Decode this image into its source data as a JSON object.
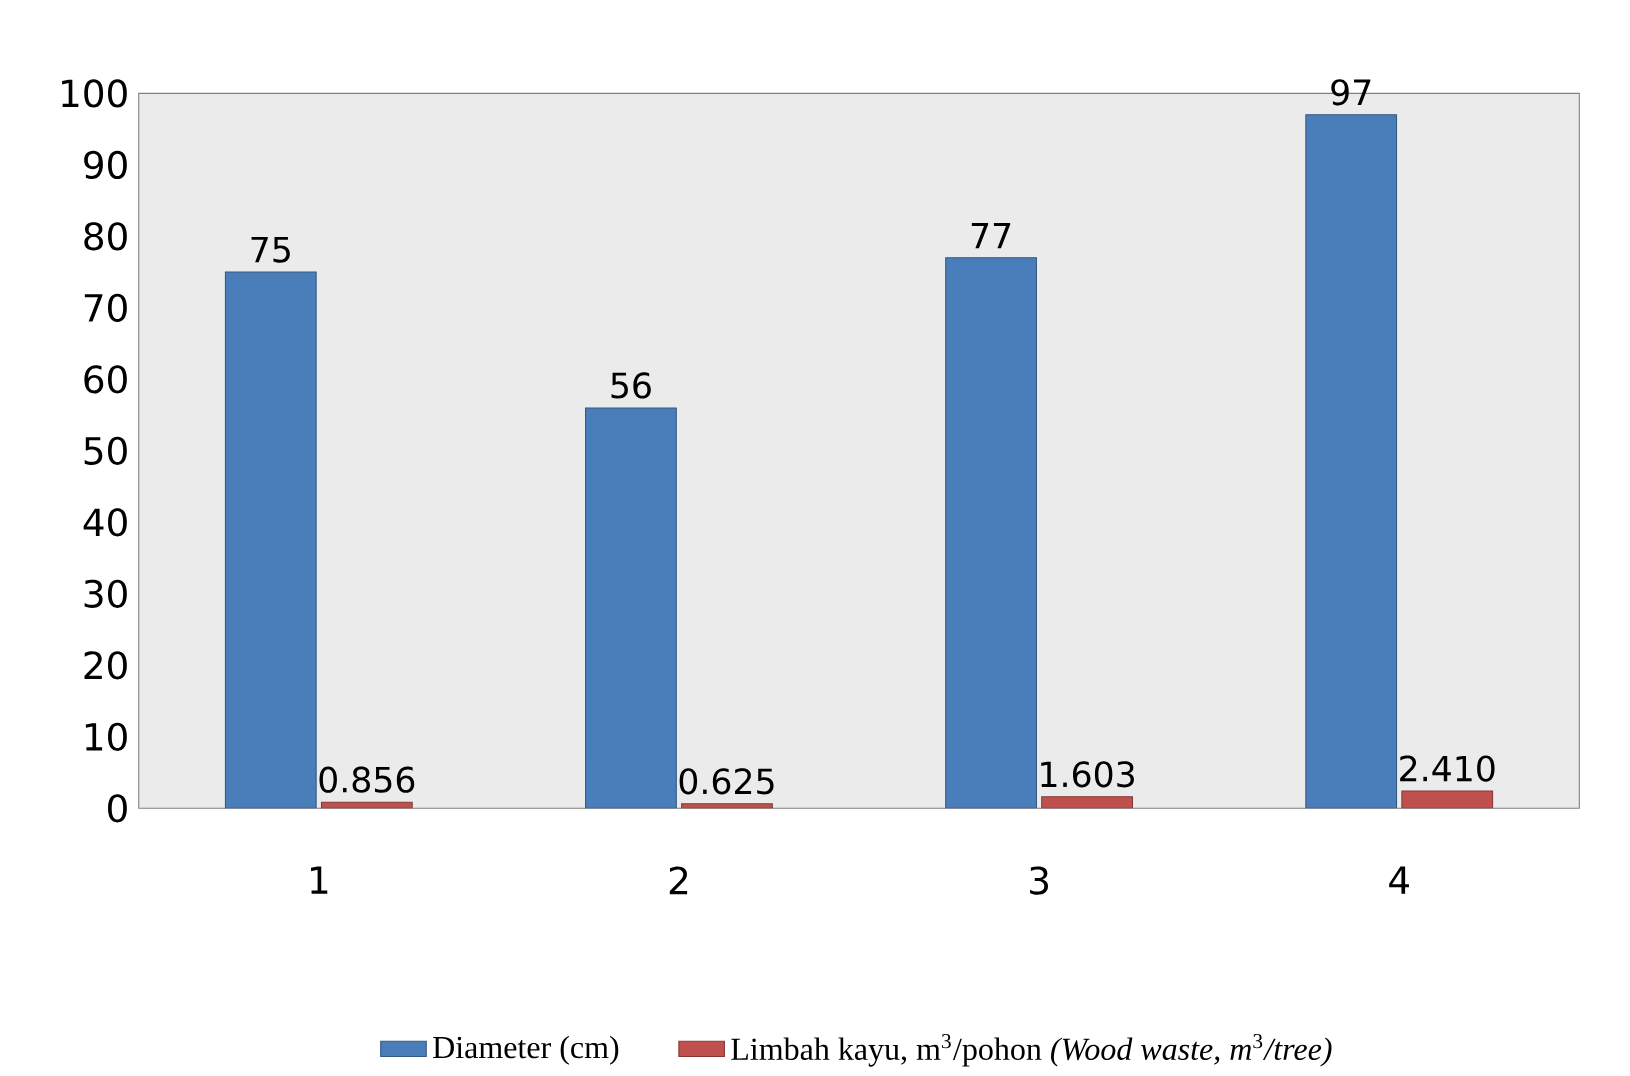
{
  "chart_data": {
    "type": "bar",
    "categories": [
      "1",
      "2",
      "3",
      "4"
    ],
    "series": [
      {
        "name": "Diameter (cm)",
        "color": "#4a7ebb",
        "values": [
          75,
          56,
          77,
          97
        ],
        "value_labels": [
          "75",
          "56",
          "77",
          "97"
        ]
      },
      {
        "name": "Limbah kayu, m$^{3}$/pohon *(Wood waste, m*$^{3}$*/tree)*",
        "color": "#c0504d",
        "values": [
          0.856,
          0.625,
          1.603,
          2.41
        ],
        "value_labels": [
          "0.856",
          "0.625",
          "1.603",
          "2.410"
        ]
      }
    ],
    "ylim": [
      0,
      100
    ],
    "yticks": [
      0,
      10,
      20,
      30,
      40,
      50,
      60,
      70,
      80,
      90,
      100
    ],
    "grid": false,
    "legend": "bottom"
  }
}
